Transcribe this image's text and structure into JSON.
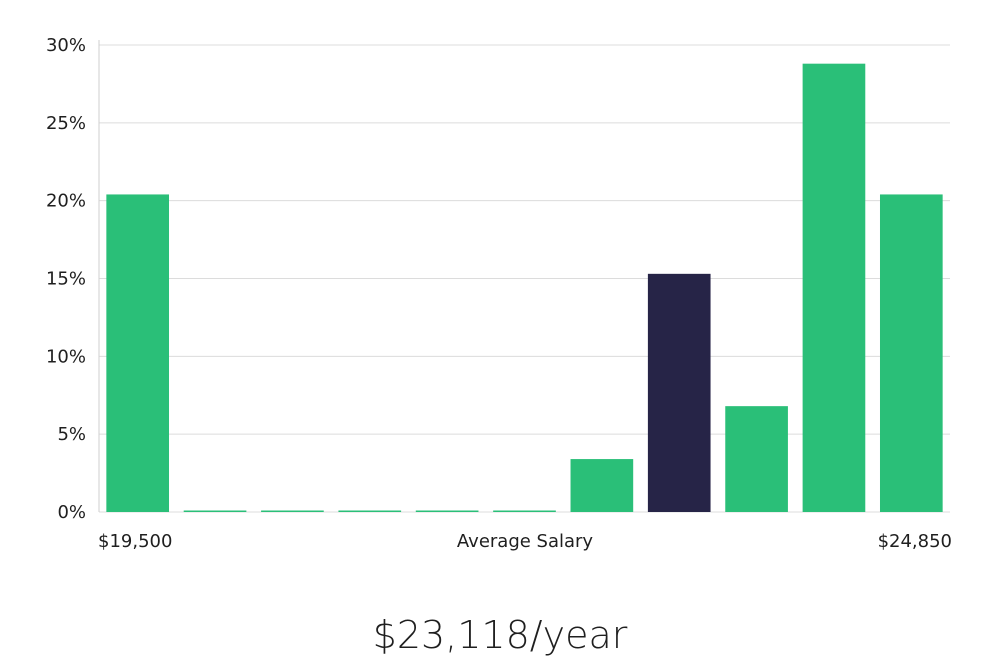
{
  "chart_data": {
    "type": "bar",
    "title": "",
    "xlabel": "Average Salary",
    "ylabel": "",
    "x_range_labels": {
      "min": "$19,500",
      "max": "$24,850"
    },
    "ylim": [
      0,
      30
    ],
    "yticks": [
      "0%",
      "5%",
      "10%",
      "15%",
      "20%",
      "25%",
      "30%"
    ],
    "values": [
      20.4,
      0.05,
      0.05,
      0.05,
      0.05,
      0.05,
      3.4,
      15.3,
      6.8,
      28.8,
      20.4
    ],
    "highlight_index": 7,
    "colors": {
      "default": "#2abf78",
      "highlight": "#262447"
    },
    "grid": true
  },
  "summary": {
    "salary_label": "$23,118/year"
  }
}
